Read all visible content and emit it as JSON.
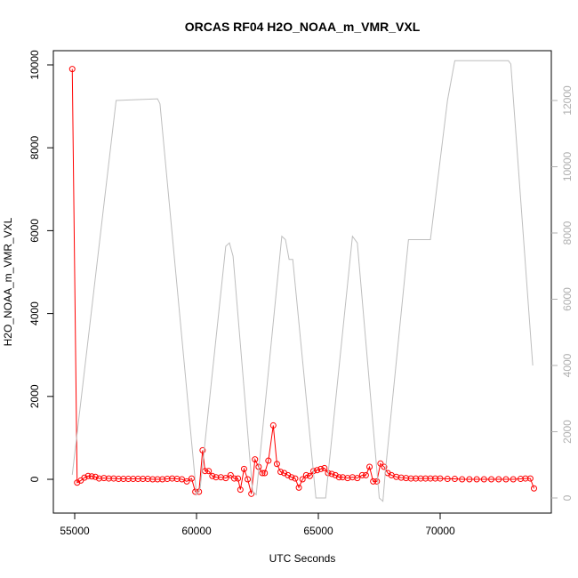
{
  "chart_data": {
    "type": "line",
    "title": "ORCAS RF04 H2O_NOAA_m_VMR_VXL",
    "x_label": "UTC Seconds",
    "y_label": "H2O_NOAA_m_VMR_VXL",
    "xlim": [
      54124,
      74562
    ],
    "xticks": [
      55000,
      60000,
      65000,
      70000
    ],
    "ylim": [
      -815,
      10343
    ],
    "yticks": [
      0,
      2000,
      4000,
      6000,
      8000,
      10000
    ],
    "y2lim": [
      -456,
      13503
    ],
    "y2ticks": [
      0,
      2000,
      4000,
      6000,
      8000,
      10000,
      12000
    ],
    "series": [
      {
        "color": "#ff0000",
        "markers": true,
        "x": [
          54900,
          55100,
          55250,
          55400,
          55550,
          55700,
          55850,
          56000,
          56200,
          56400,
          56600,
          56800,
          57000,
          57200,
          57400,
          57600,
          57800,
          58000,
          58200,
          58400,
          58600,
          58800,
          59000,
          59200,
          59400,
          59600,
          59800,
          59950,
          60100,
          60250,
          60350,
          60500,
          60650,
          60800,
          61000,
          61200,
          61400,
          61550,
          61700,
          61800,
          61950,
          62100,
          62250,
          62400,
          62550,
          62700,
          62800,
          62950,
          63150,
          63300,
          63450,
          63600,
          63750,
          63900,
          64050,
          64200,
          64350,
          64500,
          64650,
          64800,
          64950,
          65100,
          65250,
          65400,
          65550,
          65700,
          65850,
          66000,
          66200,
          66400,
          66600,
          66800,
          66950,
          67100,
          67250,
          67400,
          67550,
          67700,
          67850,
          68000,
          68200,
          68400,
          68600,
          68800,
          69000,
          69200,
          69400,
          69600,
          69800,
          70000,
          70300,
          70600,
          70900,
          71200,
          71500,
          71800,
          72100,
          72400,
          72700,
          73000,
          73300,
          73500,
          73700,
          73850
        ],
        "values": [
          9900,
          -80,
          -30,
          40,
          80,
          70,
          60,
          20,
          30,
          20,
          20,
          10,
          10,
          10,
          10,
          10,
          10,
          10,
          0,
          0,
          0,
          10,
          20,
          10,
          0,
          -50,
          20,
          -300,
          -300,
          700,
          200,
          200,
          80,
          50,
          50,
          30,
          100,
          20,
          20,
          -250,
          250,
          0,
          -350,
          480,
          300,
          150,
          150,
          450,
          1300,
          370,
          180,
          150,
          100,
          50,
          20,
          -200,
          0,
          100,
          80,
          200,
          220,
          250,
          270,
          150,
          130,
          100,
          50,
          50,
          30,
          50,
          30,
          100,
          100,
          300,
          -50,
          -50,
          380,
          300,
          150,
          100,
          60,
          40,
          30,
          20,
          20,
          20,
          20,
          20,
          20,
          20,
          10,
          10,
          0,
          0,
          0,
          0,
          0,
          0,
          0,
          0,
          10,
          20,
          20,
          -220
        ]
      },
      {
        "color": "#bebebe",
        "axis": "y2",
        "x": [
          54900,
          56700,
          58400,
          58500,
          60000,
          60150,
          61200,
          61350,
          61500,
          62300,
          62450,
          63500,
          63650,
          63800,
          63950,
          64900,
          65300,
          66400,
          66600,
          67500,
          67650,
          67750,
          68700,
          69600,
          70300,
          70600,
          72800,
          72900,
          73800
        ],
        "values": [
          700,
          12000,
          12050,
          11900,
          100,
          300,
          7600,
          7700,
          7300,
          200,
          100,
          7900,
          7800,
          7200,
          7200,
          0,
          0,
          7900,
          7700,
          0,
          -100,
          800,
          7800,
          7800,
          12000,
          13200,
          13200,
          13100,
          4000
        ]
      }
    ]
  }
}
